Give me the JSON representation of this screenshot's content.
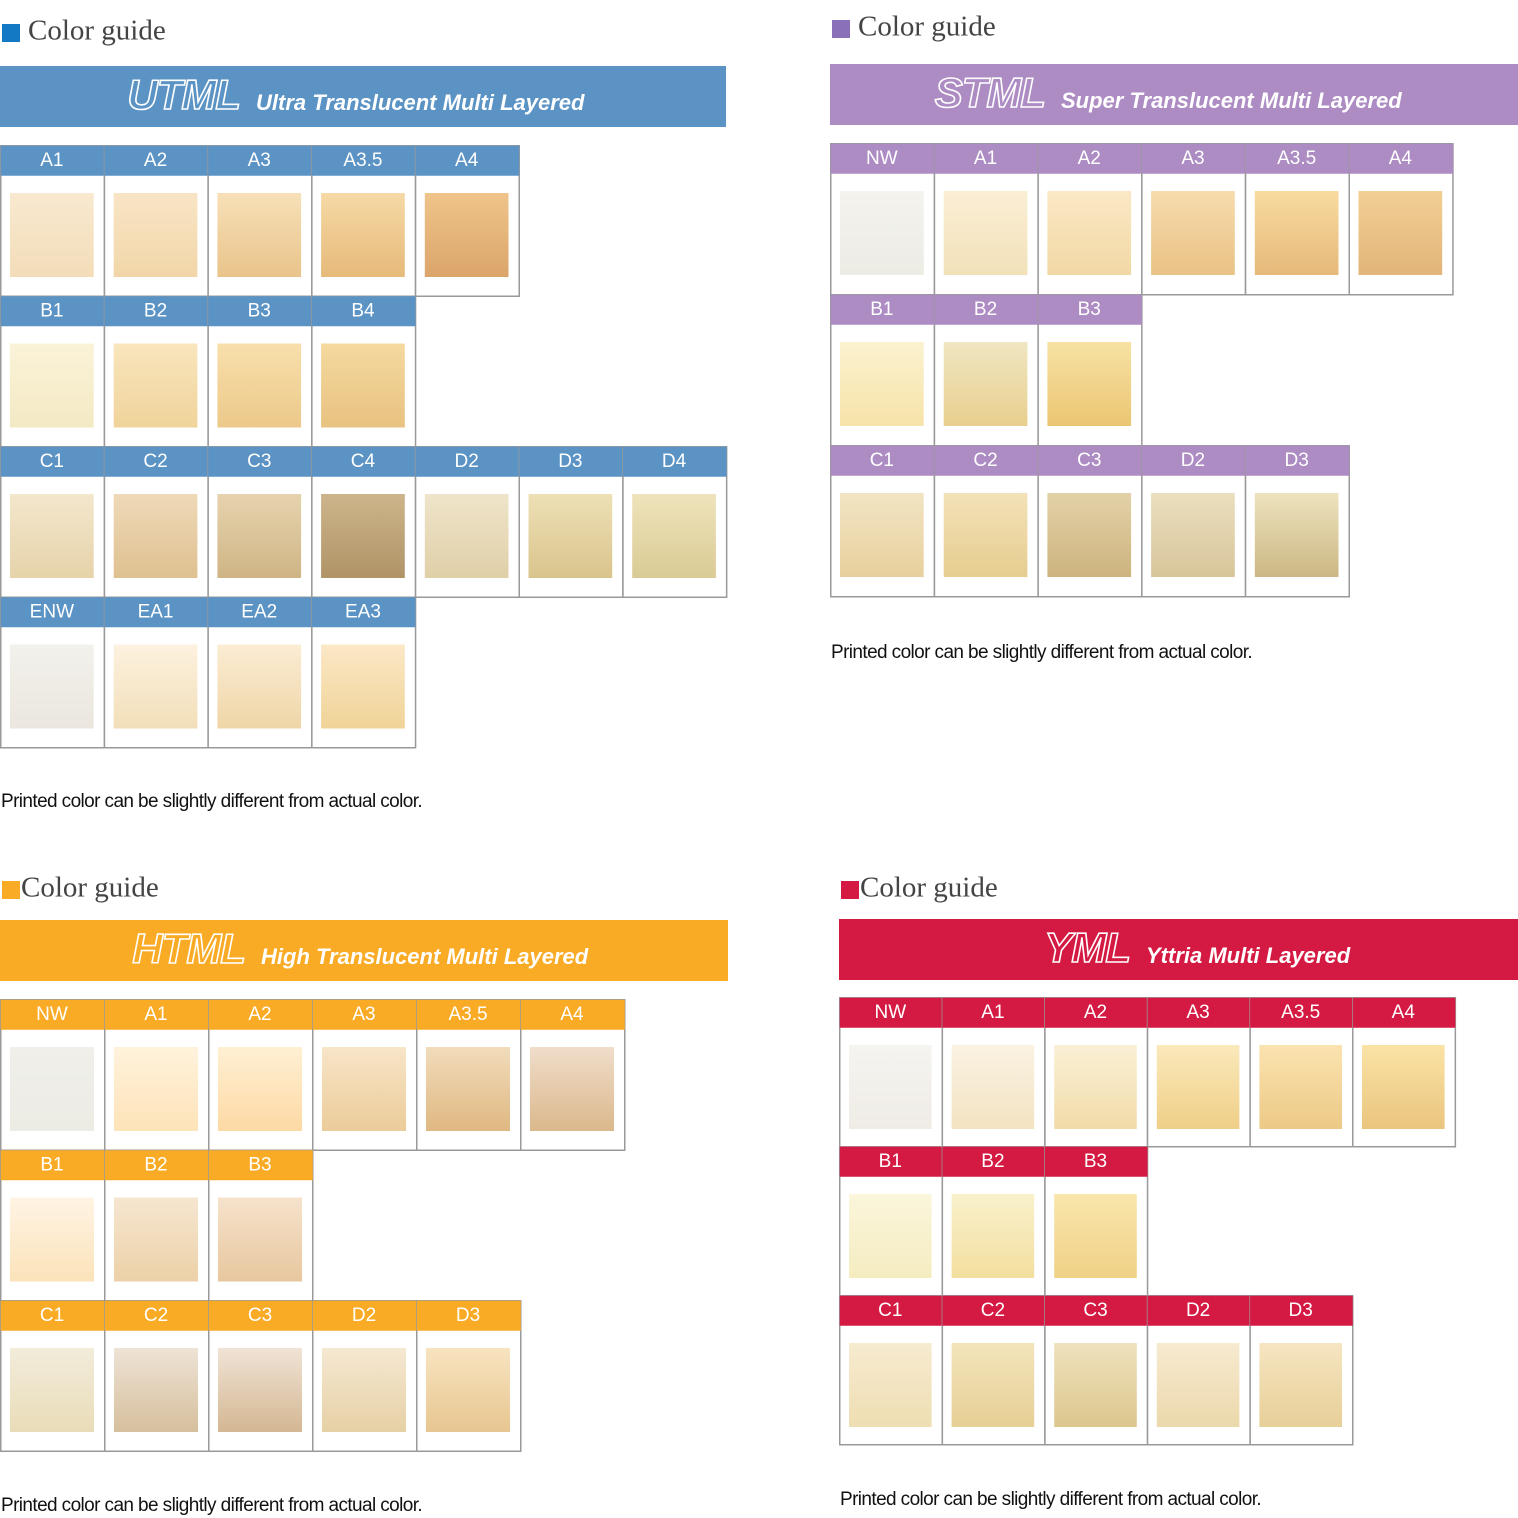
{
  "panels": [
    {
      "heading": "Color guide",
      "abbreviation": "UTML",
      "name": "Ultra Translucent Multi Layered",
      "color": "#5b93c4",
      "marker_color": "#1479c4",
      "rows": [
        [
          {
            "name": "A1",
            "colors": [
              "#f8e9d0",
              "#f3ddb8"
            ]
          },
          {
            "name": "A2",
            "colors": [
              "#f8e5c6",
              "#f2d6a8"
            ]
          },
          {
            "name": "A3",
            "colors": [
              "#f7e0b8",
              "#e9c48a"
            ]
          },
          {
            "name": "A3.5",
            "colors": [
              "#f6d9a6",
              "#e6ba7a"
            ]
          },
          {
            "name": "A4",
            "colors": [
              "#efc48a",
              "#dba56a"
            ]
          }
        ],
        [
          {
            "name": "B1",
            "colors": [
              "#fbf3d8",
              "#f3e9c4"
            ]
          },
          {
            "name": "B2",
            "colors": [
              "#f9e6bd",
              "#f0d39b"
            ]
          },
          {
            "name": "B3",
            "colors": [
              "#f8dfab",
              "#ecc98a"
            ]
          },
          {
            "name": "B4",
            "colors": [
              "#f5d9a0",
              "#e8c280"
            ]
          }
        ],
        [
          {
            "name": "C1",
            "colors": [
              "#f3e7cc",
              "#e6d3aa"
            ]
          },
          {
            "name": "C2",
            "colors": [
              "#efd9b8",
              "#dfc191"
            ]
          },
          {
            "name": "C3",
            "colors": [
              "#e6d3ae",
              "#cfb585"
            ]
          },
          {
            "name": "C4",
            "colors": [
              "#cdb48a",
              "#b09468"
            ]
          },
          {
            "name": "D2",
            "colors": [
              "#efe4ca",
              "#e0d0a8"
            ]
          },
          {
            "name": "D3",
            "colors": [
              "#eee0b6",
              "#d9c48c"
            ]
          },
          {
            "name": "D4",
            "colors": [
              "#efe3bb",
              "#dacb95"
            ]
          }
        ],
        [
          {
            "name": "ENW",
            "colors": [
              "#f3f1ec",
              "#ebe7df"
            ]
          },
          {
            "name": "EA1",
            "colors": [
              "#fdf2e0",
              "#f2deb8"
            ]
          },
          {
            "name": "EA2",
            "colors": [
              "#fbecd3",
              "#efd6a8"
            ]
          },
          {
            "name": "EA3",
            "colors": [
              "#fbe8c6",
              "#f0d398"
            ]
          }
        ]
      ],
      "note": "Printed color can be slightly different from actual color."
    },
    {
      "heading": "Color guide",
      "abbreviation": "STML",
      "name": "Super Translucent Multi Layered",
      "color": "#ad8bc3",
      "marker_color": "#8a6fb9",
      "rows": [
        [
          {
            "name": "NW",
            "colors": [
              "#f4f3ee",
              "#ecebe4"
            ]
          },
          {
            "name": "A1",
            "colors": [
              "#fbeed6",
              "#f2e1b8"
            ]
          },
          {
            "name": "A2",
            "colors": [
              "#fae8c5",
              "#f2d8a5"
            ]
          },
          {
            "name": "A3",
            "colors": [
              "#f7dcad",
              "#e9c285"
            ]
          },
          {
            "name": "A3.5",
            "colors": [
              "#f8dba0",
              "#e6b97a"
            ]
          },
          {
            "name": "A4",
            "colors": [
              "#f2cf95",
              "#e2b57a"
            ]
          }
        ],
        [
          {
            "name": "B1",
            "colors": [
              "#fbf2cf",
              "#f6e3a8"
            ]
          },
          {
            "name": "B2",
            "colors": [
              "#f0e6c2",
              "#e8cf8e"
            ]
          },
          {
            "name": "B3",
            "colors": [
              "#f7e2a3",
              "#ebc673"
            ]
          }
        ],
        [
          {
            "name": "C1",
            "colors": [
              "#f2e4c3",
              "#e7d09d"
            ]
          },
          {
            "name": "C2",
            "colors": [
              "#f3e2b8",
              "#e6cd90"
            ]
          },
          {
            "name": "C3",
            "colors": [
              "#e3d1a8",
              "#cdb47e"
            ]
          },
          {
            "name": "D2",
            "colors": [
              "#ebdfbf",
              "#d8c59a"
            ]
          },
          {
            "name": "D3",
            "colors": [
              "#eee3be",
              "#cbb784"
            ]
          }
        ]
      ],
      "note": "Printed color can be slightly different from actual color."
    },
    {
      "heading": "Color guide",
      "abbreviation": "HTML",
      "name": "High Translucent Multi Layered",
      "color": "#f9ab26",
      "marker_color": "#f9ab26",
      "rows": [
        [
          {
            "name": "NW",
            "colors": [
              "#f0efea",
              "#ecebe4"
            ]
          },
          {
            "name": "A1",
            "colors": [
              "#fff2dc",
              "#fde3b8"
            ]
          },
          {
            "name": "A2",
            "colors": [
              "#fff0d4",
              "#fdd9a4"
            ]
          },
          {
            "name": "A3",
            "colors": [
              "#f8e5c8",
              "#ebcc9a"
            ]
          },
          {
            "name": "A3.5",
            "colors": [
              "#f2dcbb",
              "#dfb882"
            ]
          },
          {
            "name": "A4",
            "colors": [
              "#f0ddca",
              "#dbb88c"
            ]
          }
        ],
        [
          {
            "name": "B1",
            "colors": [
              "#fff4e4",
              "#fbe3b9"
            ]
          },
          {
            "name": "B2",
            "colors": [
              "#f6e6d0",
              "#ecd1a8"
            ]
          },
          {
            "name": "B3",
            "colors": [
              "#f6e2cc",
              "#e7c79e"
            ]
          }
        ],
        [
          {
            "name": "C1",
            "colors": [
              "#f2ecda",
              "#e9dcb8"
            ]
          },
          {
            "name": "C2",
            "colors": [
              "#eee3d6",
              "#d6bf9c"
            ]
          },
          {
            "name": "C3",
            "colors": [
              "#f0e3d6",
              "#d4b792"
            ]
          },
          {
            "name": "D2",
            "colors": [
              "#f5e8d2",
              "#e6d0a5"
            ]
          },
          {
            "name": "D3",
            "colors": [
              "#f8e3c0",
              "#e7c690"
            ]
          }
        ]
      ],
      "note": "Printed color can be slightly different from actual color."
    },
    {
      "heading": "Color guide",
      "abbreviation": "YML",
      "name": "Yttria Multi Layered",
      "color": "#d41a42",
      "marker_color": "#d41a42",
      "rows": [
        [
          {
            "name": "NW",
            "colors": [
              "#f6f4f0",
              "#efece6"
            ]
          },
          {
            "name": "A1",
            "colors": [
              "#faf2e2",
              "#f3e3c2"
            ]
          },
          {
            "name": "A2",
            "colors": [
              "#faf0d6",
              "#f1dca8"
            ]
          },
          {
            "name": "A3",
            "colors": [
              "#fbe9bb",
              "#efcf87"
            ]
          },
          {
            "name": "A3.5",
            "colors": [
              "#fbe3b0",
              "#ecc986"
            ]
          },
          {
            "name": "A4",
            "colors": [
              "#fae3a6",
              "#eac57e"
            ]
          }
        ],
        [
          {
            "name": "B1",
            "colors": [
              "#fbf6dc",
              "#f5ecc0"
            ]
          },
          {
            "name": "B2",
            "colors": [
              "#f9f1cc",
              "#f3df9f"
            ]
          },
          {
            "name": "B3",
            "colors": [
              "#f9e6ac",
              "#f0d187"
            ]
          }
        ],
        [
          {
            "name": "C1",
            "colors": [
              "#f7ebd0",
              "#eedeb2"
            ]
          },
          {
            "name": "C2",
            "colors": [
              "#f3e4bb",
              "#e6cf95"
            ]
          },
          {
            "name": "C3",
            "colors": [
              "#efe2bc",
              "#dcc68e"
            ]
          },
          {
            "name": "D2",
            "colors": [
              "#f7ead0",
              "#ebd8ab"
            ]
          },
          {
            "name": "D3",
            "colors": [
              "#f6e5c1",
              "#e7cf98"
            ]
          }
        ]
      ],
      "note": "Printed color can be slightly different from actual color."
    }
  ]
}
